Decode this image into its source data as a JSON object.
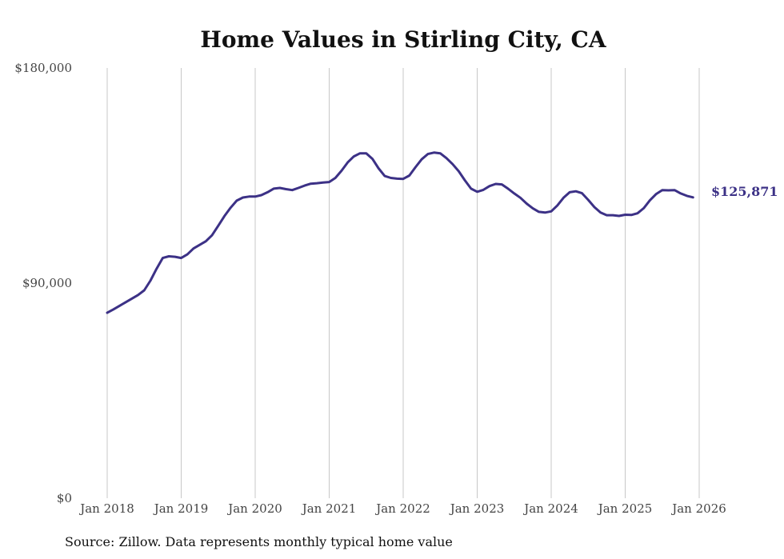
{
  "chart_data": {
    "type": "line",
    "title": "Home Values in Stirling City, CA",
    "source_note": "Source: Zillow. Data represents monthly typical home value",
    "ylim": [
      0,
      180000
    ],
    "yticks": [
      {
        "value": 0,
        "label": "$0"
      },
      {
        "value": 90000,
        "label": "$90,000"
      },
      {
        "value": 180000,
        "label": "$180,000"
      }
    ],
    "xticks": [
      {
        "month": 0,
        "label": "Jan 2018"
      },
      {
        "month": 12,
        "label": "Jan 2019"
      },
      {
        "month": 24,
        "label": "Jan 2020"
      },
      {
        "month": 36,
        "label": "Jan 2021"
      },
      {
        "month": 48,
        "label": "Jan 2022"
      },
      {
        "month": 60,
        "label": "Jan 2023"
      },
      {
        "month": 72,
        "label": "Jan 2024"
      },
      {
        "month": 84,
        "label": "Jan 2025"
      },
      {
        "month": 96,
        "label": "Jan 2026"
      }
    ],
    "xlim": [
      0,
      96
    ],
    "end_label": "$125,871",
    "line_color": "#3c3186",
    "series": [
      {
        "name": "Typical home value",
        "points": [
          [
            0,
            77600
          ],
          [
            1,
            79000
          ],
          [
            2,
            80500
          ],
          [
            3,
            82000
          ],
          [
            4,
            83500
          ],
          [
            5,
            85000
          ],
          [
            6,
            87000
          ],
          [
            7,
            91000
          ],
          [
            8,
            96000
          ],
          [
            9,
            100500
          ],
          [
            10,
            101200
          ],
          [
            11,
            101000
          ],
          [
            12,
            100500
          ],
          [
            13,
            102000
          ],
          [
            14,
            104500
          ],
          [
            15,
            106000
          ],
          [
            16,
            107500
          ],
          [
            17,
            110000
          ],
          [
            18,
            114000
          ],
          [
            19,
            118000
          ],
          [
            20,
            121500
          ],
          [
            21,
            124500
          ],
          [
            22,
            125800
          ],
          [
            23,
            126200
          ],
          [
            24,
            126200
          ],
          [
            25,
            126800
          ],
          [
            26,
            128000
          ],
          [
            27,
            129500
          ],
          [
            28,
            129800
          ],
          [
            29,
            129300
          ],
          [
            30,
            128900
          ],
          [
            31,
            129800
          ],
          [
            32,
            130800
          ],
          [
            33,
            131600
          ],
          [
            34,
            131800
          ],
          [
            35,
            132100
          ],
          [
            36,
            132300
          ],
          [
            37,
            134000
          ],
          [
            38,
            137000
          ],
          [
            39,
            140500
          ],
          [
            40,
            143000
          ],
          [
            41,
            144300
          ],
          [
            42,
            144300
          ],
          [
            43,
            142000
          ],
          [
            44,
            138000
          ],
          [
            45,
            134800
          ],
          [
            46,
            134000
          ],
          [
            47,
            133700
          ],
          [
            48,
            133600
          ],
          [
            49,
            135000
          ],
          [
            50,
            138500
          ],
          [
            51,
            141800
          ],
          [
            52,
            144000
          ],
          [
            53,
            144600
          ],
          [
            54,
            144300
          ],
          [
            55,
            142300
          ],
          [
            56,
            139800
          ],
          [
            57,
            136800
          ],
          [
            58,
            133000
          ],
          [
            59,
            129500
          ],
          [
            60,
            128200
          ],
          [
            61,
            129000
          ],
          [
            62,
            130600
          ],
          [
            63,
            131500
          ],
          [
            64,
            131300
          ],
          [
            65,
            129500
          ],
          [
            66,
            127500
          ],
          [
            67,
            125700
          ],
          [
            68,
            123300
          ],
          [
            69,
            121300
          ],
          [
            70,
            119800
          ],
          [
            71,
            119500
          ],
          [
            72,
            120000
          ],
          [
            73,
            122500
          ],
          [
            74,
            125700
          ],
          [
            75,
            128000
          ],
          [
            76,
            128400
          ],
          [
            77,
            127600
          ],
          [
            78,
            124800
          ],
          [
            79,
            121800
          ],
          [
            80,
            119500
          ],
          [
            81,
            118400
          ],
          [
            82,
            118400
          ],
          [
            83,
            118100
          ],
          [
            84,
            118600
          ],
          [
            85,
            118500
          ],
          [
            86,
            119200
          ],
          [
            87,
            121300
          ],
          [
            88,
            124600
          ],
          [
            89,
            127200
          ],
          [
            90,
            128900
          ],
          [
            91,
            128800
          ],
          [
            92,
            128900
          ],
          [
            93,
            127500
          ],
          [
            94,
            126500
          ],
          [
            95,
            125871
          ]
        ]
      }
    ]
  }
}
